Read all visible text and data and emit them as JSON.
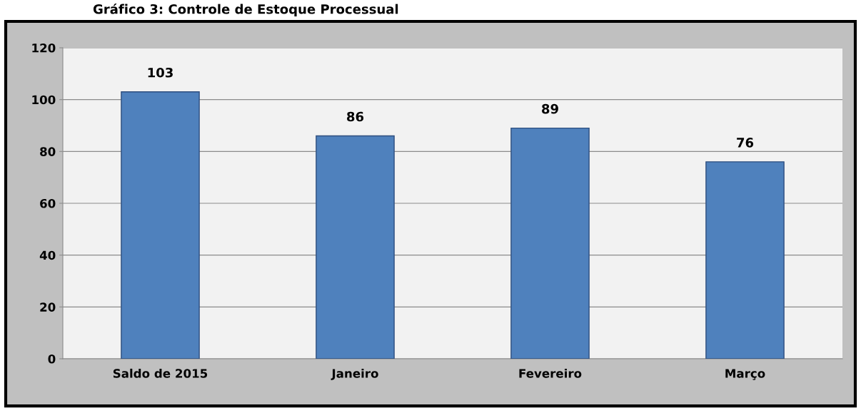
{
  "chart_data": {
    "type": "bar",
    "title": "Gráfico 3: Controle de Estoque Processual",
    "categories": [
      "Saldo de 2015",
      "Janeiro",
      "Fevereiro",
      "Março"
    ],
    "values": [
      103,
      86,
      89,
      76
    ],
    "color": "#4f81bd",
    "ylim": [
      0,
      120
    ],
    "yticks": [
      0,
      20,
      40,
      60,
      80,
      100,
      120
    ],
    "grid": "y",
    "data_labels": true
  }
}
